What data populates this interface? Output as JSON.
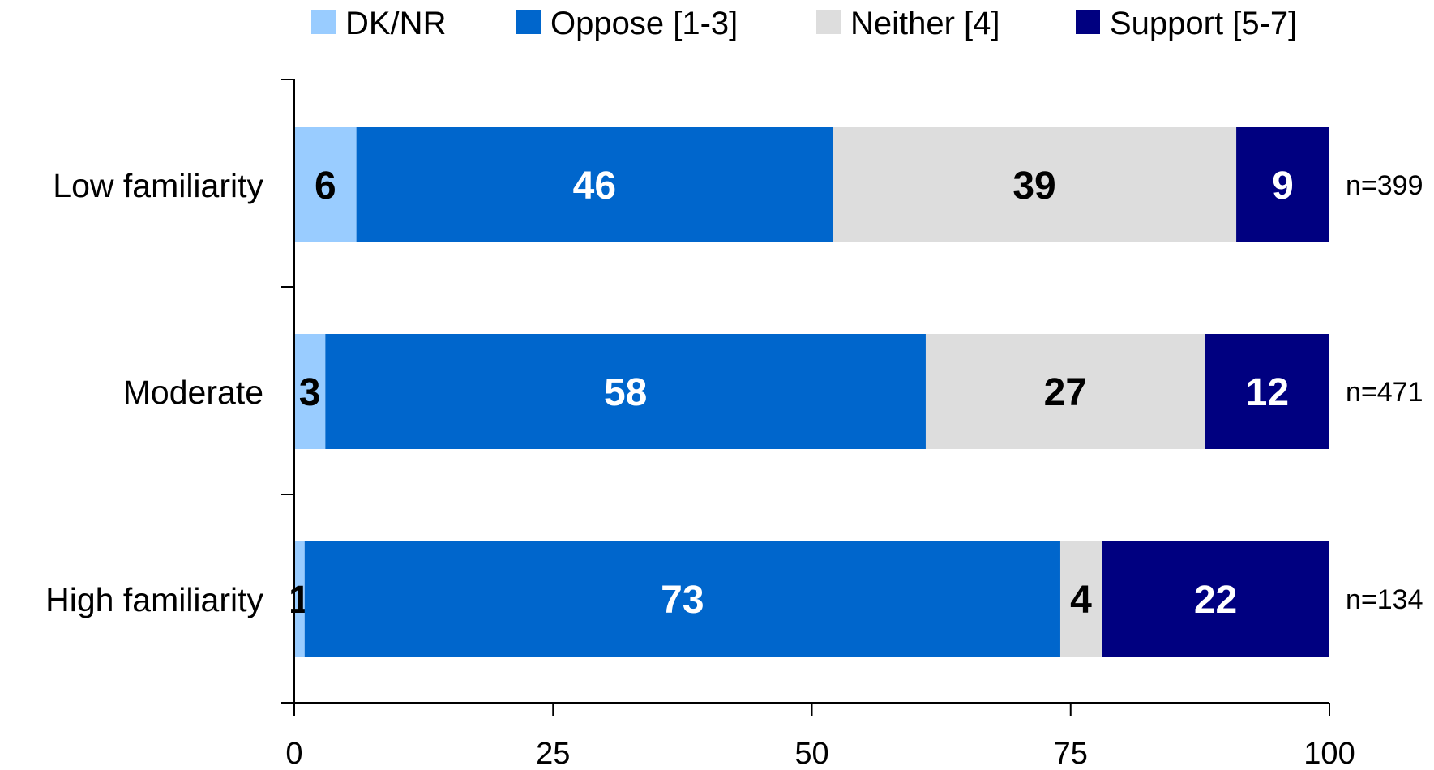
{
  "chart_data": {
    "type": "bar",
    "orientation": "horizontal",
    "stacked": true,
    "categories": [
      "Low familiarity",
      "Moderate",
      "High familiarity"
    ],
    "series": [
      {
        "name": "DK/NR",
        "color": "#99ccff",
        "label_color": "#000000",
        "values": [
          6,
          3,
          1
        ]
      },
      {
        "name": "Oppose [1-3]",
        "color": "#0066cc",
        "label_color": "#ffffff",
        "values": [
          46,
          58,
          73
        ]
      },
      {
        "name": "Neither [4]",
        "color": "#dddddd",
        "label_color": "#000000",
        "values": [
          39,
          27,
          4
        ]
      },
      {
        "name": "Support [5-7]",
        "color": "#000080",
        "label_color": "#ffffff",
        "values": [
          9,
          12,
          22
        ]
      }
    ],
    "sample_sizes": [
      "n=399",
      "n=471",
      "n=134"
    ],
    "xlim": [
      0,
      100
    ],
    "xticks": [
      0,
      25,
      50,
      75,
      100
    ],
    "legend_position": "top",
    "grid": false,
    "title": "",
    "xlabel": "",
    "ylabel": ""
  }
}
